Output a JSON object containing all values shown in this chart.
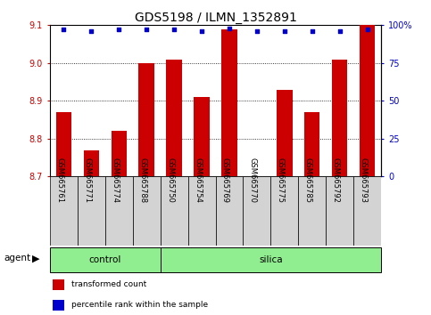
{
  "title": "GDS5198 / ILMN_1352891",
  "samples": [
    "GSM665761",
    "GSM665771",
    "GSM665774",
    "GSM665788",
    "GSM665750",
    "GSM665754",
    "GSM665769",
    "GSM665770",
    "GSM665775",
    "GSM665785",
    "GSM665792",
    "GSM665793"
  ],
  "bar_values": [
    8.87,
    8.77,
    8.82,
    9.0,
    9.01,
    8.91,
    9.09,
    8.7,
    8.93,
    8.87,
    9.01,
    9.1
  ],
  "percentile_values": [
    97,
    96,
    97,
    97,
    97,
    96,
    98,
    96,
    96,
    96,
    96,
    97
  ],
  "bar_color": "#cc0000",
  "dot_color": "#0000cc",
  "ylim_left": [
    8.7,
    9.1
  ],
  "ylim_right": [
    0,
    100
  ],
  "yticks_left": [
    8.7,
    8.8,
    8.9,
    9.0,
    9.1
  ],
  "yticks_right": [
    0,
    25,
    50,
    75,
    100
  ],
  "ytick_labels_right": [
    "0",
    "25",
    "50",
    "75",
    "100%"
  ],
  "n_control": 4,
  "n_silica": 8,
  "agent_label": "agent",
  "control_label": "control",
  "silica_label": "silica",
  "legend_bar_label": "transformed count",
  "legend_dot_label": "percentile rank within the sample",
  "bar_width": 0.55,
  "bg_color": "#ffffff",
  "plot_bg_color": "#ffffff",
  "sample_label_bg": "#d3d3d3",
  "green_color": "#90ee90",
  "title_fontsize": 10,
  "tick_fontsize": 7,
  "label_fontsize": 7.5,
  "agent_fontsize": 7.5
}
